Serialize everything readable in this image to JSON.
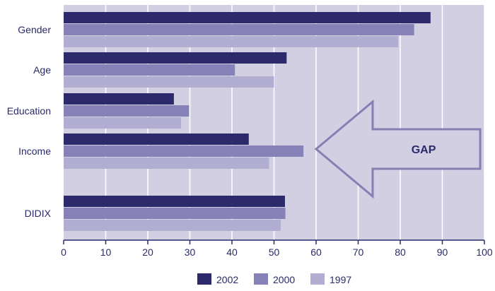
{
  "chart_data": {
    "type": "bar",
    "orientation": "horizontal",
    "categories": [
      "Gender",
      "Age",
      "Education",
      "Income",
      "DIDIX"
    ],
    "series": [
      {
        "name": "2002",
        "values": [
          87.2,
          53.0,
          26.2,
          44.0,
          52.6
        ]
      },
      {
        "name": "2000",
        "values": [
          83.3,
          40.7,
          29.8,
          57.0,
          52.7
        ]
      },
      {
        "name": "1997",
        "values": [
          79.5,
          50.0,
          27.9,
          48.8,
          51.6
        ]
      }
    ],
    "xlim": [
      0,
      100
    ],
    "xticks": [
      "0",
      "10",
      "20",
      "30",
      "40",
      "50",
      "60",
      "70",
      "80",
      "90",
      "100"
    ],
    "grid": true,
    "legend_position": "bottom",
    "annotation": {
      "text": "GAP",
      "shape": "left-pointing-arrow",
      "x_start": 60,
      "x_end": 99
    }
  },
  "colors": {
    "plot_bg": "#d2cfe2",
    "grid": "#ffffff",
    "axis": "#2a2a6a",
    "text": "#2a2a6a",
    "arrow_stroke": "#8580b3",
    "series": [
      "#2c2a6b",
      "#8682b7",
      "#b2aed2"
    ]
  }
}
